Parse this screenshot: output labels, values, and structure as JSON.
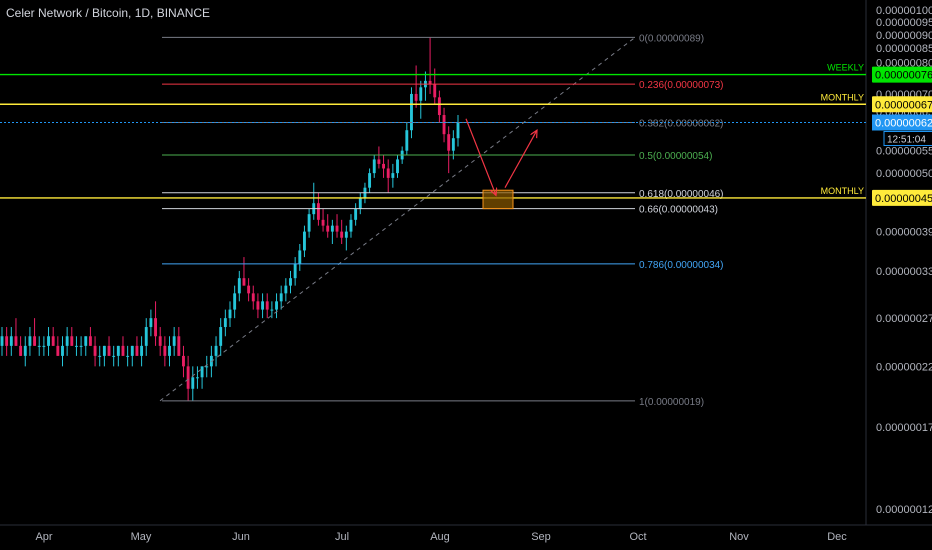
{
  "header": {
    "title": "Celer Network / Bitcoin, 1D, BINANCE"
  },
  "colors": {
    "background": "#000000",
    "candle_up": "#26c6da",
    "candle_down": "#e91e63",
    "fib_line_grey": "#787b86",
    "fib_red": "#f23645",
    "fib_green": "#4caf50",
    "fib_teal": "#26a69a",
    "fib_white": "#d1d4dc",
    "fib_blue": "#42a5f5",
    "weekly_green": "#00e600",
    "monthly_yellow": "#ffeb3b",
    "current_price_blue": "#2196f3",
    "arrow_red": "#f23645",
    "target_box": "#f7931a"
  },
  "chart_data": {
    "type": "candlestick",
    "title": "Celer Network / Bitcoin, 1D, BINANCE",
    "x_axis": {
      "tick_labels": [
        "Apr",
        "May",
        "Jun",
        "Jul",
        "Aug",
        "Sep",
        "Oct",
        "Nov",
        "Dec"
      ]
    },
    "y_axis": {
      "scale": "log",
      "tick_labels": [
        "0.00000100",
        "0.00000095",
        "0.00000090",
        "0.00000085",
        "0.00000080",
        "0.00000070",
        "0.00000065",
        "0.00000055",
        "0.00000050",
        "0.00000039",
        "0.00000033",
        "0.00000027",
        "0.00000022",
        "0.00000017",
        "0.00000012"
      ],
      "tick_values": [
        1.0,
        0.95,
        0.9,
        0.85,
        0.8,
        0.7,
        0.65,
        0.55,
        0.5,
        0.39,
        0.33,
        0.27,
        0.22,
        0.17,
        0.12
      ],
      "unit_note": "values in units of 1e-6 BTC"
    },
    "fib_levels": [
      {
        "label": "0(0.00000089)",
        "value": 0.89,
        "color": "#787b86"
      },
      {
        "label": "0.236(0.00000073)",
        "value": 0.73,
        "color": "#f23645"
      },
      {
        "label": "0.382(0.00000062)",
        "value": 0.62,
        "color": "#787b86"
      },
      {
        "label": "0.5(0.00000054)",
        "value": 0.54,
        "color": "#4caf50"
      },
      {
        "label": "0.618(0.00000046)",
        "value": 0.46,
        "color": "#d1d4dc"
      },
      {
        "label": "0.66(0.00000043)",
        "value": 0.43,
        "color": "#d1d4dc"
      },
      {
        "label": "0.786(0.00000034)",
        "value": 0.34,
        "color": "#42a5f5"
      },
      {
        "label": "1(0.00000019)",
        "value": 0.19,
        "color": "#787b86"
      }
    ],
    "horizontal_levels": [
      {
        "name": "WEEKLY",
        "value": 0.76,
        "price_label": "0.00000076",
        "color": "#00e600"
      },
      {
        "name": "MONTHLY",
        "value": 0.67,
        "price_label": "0.00000067",
        "color": "#ffeb3b"
      },
      {
        "name": "MONTHLY",
        "value": 0.45,
        "price_label": "0.00000045",
        "color": "#ffeb3b"
      }
    ],
    "current_price": {
      "value": 0.62,
      "label": "0.00000062",
      "countdown": "12:51:04"
    },
    "candles": [
      [
        0.24,
        0.26,
        0.23,
        0.25
      ],
      [
        0.25,
        0.26,
        0.23,
        0.24
      ],
      [
        0.24,
        0.26,
        0.23,
        0.25
      ],
      [
        0.25,
        0.27,
        0.24,
        0.24
      ],
      [
        0.24,
        0.25,
        0.23,
        0.23
      ],
      [
        0.23,
        0.25,
        0.22,
        0.24
      ],
      [
        0.24,
        0.26,
        0.23,
        0.25
      ],
      [
        0.25,
        0.27,
        0.24,
        0.24
      ],
      [
        0.24,
        0.25,
        0.23,
        0.24
      ],
      [
        0.24,
        0.25,
        0.23,
        0.24
      ],
      [
        0.24,
        0.26,
        0.23,
        0.25
      ],
      [
        0.25,
        0.26,
        0.24,
        0.24
      ],
      [
        0.24,
        0.25,
        0.23,
        0.23
      ],
      [
        0.23,
        0.25,
        0.22,
        0.24
      ],
      [
        0.24,
        0.26,
        0.23,
        0.25
      ],
      [
        0.25,
        0.26,
        0.24,
        0.24
      ],
      [
        0.24,
        0.25,
        0.23,
        0.24
      ],
      [
        0.24,
        0.25,
        0.23,
        0.24
      ],
      [
        0.24,
        0.25,
        0.23,
        0.25
      ],
      [
        0.25,
        0.26,
        0.24,
        0.24
      ],
      [
        0.24,
        0.25,
        0.22,
        0.23
      ],
      [
        0.23,
        0.24,
        0.22,
        0.23
      ],
      [
        0.23,
        0.24,
        0.22,
        0.24
      ],
      [
        0.24,
        0.25,
        0.23,
        0.23
      ],
      [
        0.23,
        0.24,
        0.22,
        0.23
      ],
      [
        0.23,
        0.24,
        0.22,
        0.24
      ],
      [
        0.24,
        0.25,
        0.23,
        0.23
      ],
      [
        0.23,
        0.24,
        0.22,
        0.23
      ],
      [
        0.23,
        0.24,
        0.22,
        0.24
      ],
      [
        0.24,
        0.25,
        0.23,
        0.23
      ],
      [
        0.23,
        0.25,
        0.22,
        0.24
      ],
      [
        0.24,
        0.27,
        0.23,
        0.26
      ],
      [
        0.26,
        0.28,
        0.25,
        0.27
      ],
      [
        0.27,
        0.29,
        0.24,
        0.25
      ],
      [
        0.25,
        0.26,
        0.23,
        0.24
      ],
      [
        0.24,
        0.25,
        0.22,
        0.23
      ],
      [
        0.23,
        0.25,
        0.22,
        0.24
      ],
      [
        0.24,
        0.26,
        0.23,
        0.25
      ],
      [
        0.25,
        0.26,
        0.23,
        0.23
      ],
      [
        0.23,
        0.24,
        0.21,
        0.22
      ],
      [
        0.22,
        0.23,
        0.19,
        0.2
      ],
      [
        0.2,
        0.22,
        0.19,
        0.21
      ],
      [
        0.21,
        0.22,
        0.2,
        0.21
      ],
      [
        0.21,
        0.22,
        0.2,
        0.22
      ],
      [
        0.22,
        0.23,
        0.21,
        0.22
      ],
      [
        0.22,
        0.24,
        0.21,
        0.23
      ],
      [
        0.23,
        0.25,
        0.22,
        0.24
      ],
      [
        0.24,
        0.27,
        0.23,
        0.26
      ],
      [
        0.26,
        0.28,
        0.25,
        0.27
      ],
      [
        0.27,
        0.29,
        0.26,
        0.28
      ],
      [
        0.28,
        0.31,
        0.27,
        0.3
      ],
      [
        0.3,
        0.33,
        0.29,
        0.32
      ],
      [
        0.32,
        0.35,
        0.31,
        0.31
      ],
      [
        0.31,
        0.32,
        0.29,
        0.3
      ],
      [
        0.3,
        0.31,
        0.28,
        0.29
      ],
      [
        0.29,
        0.3,
        0.27,
        0.28
      ],
      [
        0.28,
        0.3,
        0.27,
        0.29
      ],
      [
        0.29,
        0.3,
        0.27,
        0.28
      ],
      [
        0.28,
        0.29,
        0.27,
        0.28
      ],
      [
        0.28,
        0.3,
        0.27,
        0.29
      ],
      [
        0.29,
        0.31,
        0.28,
        0.3
      ],
      [
        0.3,
        0.32,
        0.29,
        0.31
      ],
      [
        0.31,
        0.33,
        0.3,
        0.32
      ],
      [
        0.32,
        0.35,
        0.31,
        0.34
      ],
      [
        0.34,
        0.37,
        0.33,
        0.36
      ],
      [
        0.36,
        0.4,
        0.35,
        0.39
      ],
      [
        0.39,
        0.43,
        0.38,
        0.42
      ],
      [
        0.42,
        0.48,
        0.41,
        0.44
      ],
      [
        0.44,
        0.46,
        0.4,
        0.41
      ],
      [
        0.41,
        0.43,
        0.39,
        0.4
      ],
      [
        0.4,
        0.42,
        0.38,
        0.39
      ],
      [
        0.39,
        0.41,
        0.37,
        0.4
      ],
      [
        0.4,
        0.42,
        0.38,
        0.39
      ],
      [
        0.39,
        0.41,
        0.37,
        0.38
      ],
      [
        0.38,
        0.4,
        0.36,
        0.39
      ],
      [
        0.39,
        0.42,
        0.38,
        0.41
      ],
      [
        0.41,
        0.44,
        0.4,
        0.43
      ],
      [
        0.43,
        0.46,
        0.42,
        0.45
      ],
      [
        0.45,
        0.48,
        0.44,
        0.47
      ],
      [
        0.47,
        0.51,
        0.46,
        0.5
      ],
      [
        0.5,
        0.54,
        0.49,
        0.53
      ],
      [
        0.53,
        0.56,
        0.51,
        0.52
      ],
      [
        0.52,
        0.54,
        0.49,
        0.51
      ],
      [
        0.51,
        0.53,
        0.46,
        0.49
      ],
      [
        0.49,
        0.52,
        0.47,
        0.5
      ],
      [
        0.5,
        0.54,
        0.49,
        0.53
      ],
      [
        0.53,
        0.56,
        0.52,
        0.55
      ],
      [
        0.55,
        0.62,
        0.54,
        0.6
      ],
      [
        0.6,
        0.72,
        0.58,
        0.7
      ],
      [
        0.7,
        0.79,
        0.66,
        0.68
      ],
      [
        0.68,
        0.74,
        0.63,
        0.72
      ],
      [
        0.72,
        0.77,
        0.68,
        0.74
      ],
      [
        0.74,
        0.89,
        0.7,
        0.73
      ],
      [
        0.73,
        0.78,
        0.67,
        0.69
      ],
      [
        0.69,
        0.71,
        0.62,
        0.64
      ],
      [
        0.64,
        0.66,
        0.57,
        0.59
      ],
      [
        0.59,
        0.61,
        0.5,
        0.55
      ],
      [
        0.55,
        0.6,
        0.53,
        0.58
      ],
      [
        0.58,
        0.64,
        0.56,
        0.62
      ]
    ]
  }
}
